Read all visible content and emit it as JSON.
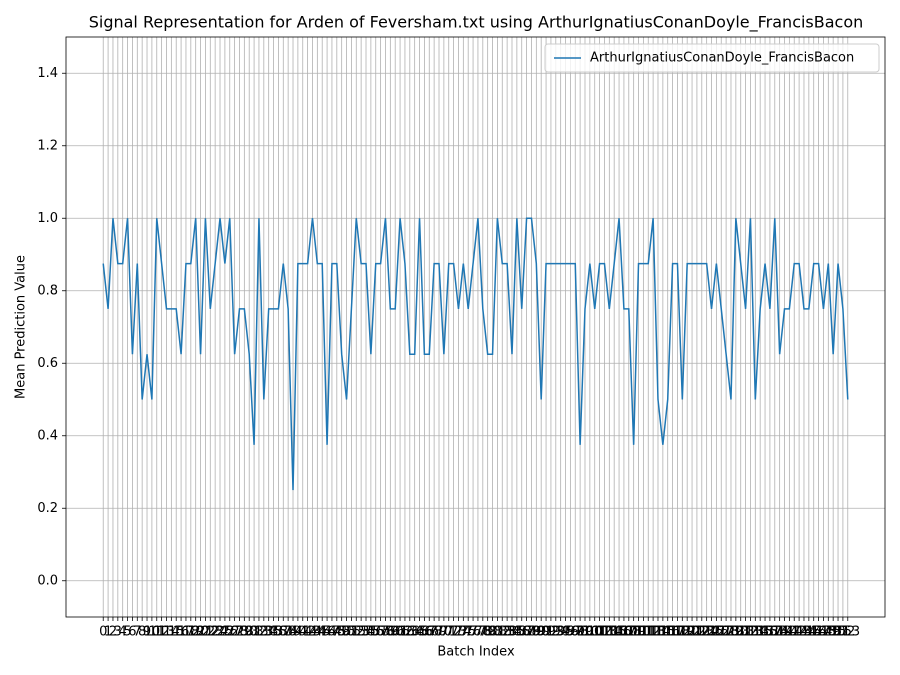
{
  "chart_data": {
    "type": "line",
    "title": "Signal Representation for Arden of Feversham.txt using ArthurIgnatiusConanDoyle_FrancisBacon",
    "x_label": "Batch Index",
    "y_label": "Mean Prediction Value",
    "x": [
      0,
      1,
      2,
      3,
      4,
      5,
      6,
      7,
      8,
      9,
      10,
      11,
      12,
      13,
      14,
      15,
      16,
      17,
      18,
      19,
      20,
      21,
      22,
      23,
      24,
      25,
      26,
      27,
      28,
      29,
      30,
      31,
      32,
      33,
      34,
      35,
      36,
      37,
      38,
      39,
      40,
      41,
      42,
      43,
      44,
      45,
      46,
      47,
      48,
      49,
      50,
      51,
      52,
      53,
      54,
      55,
      56,
      57,
      58,
      59,
      60,
      61,
      62,
      63,
      64,
      65,
      66,
      67,
      68,
      69,
      70,
      71,
      72,
      73,
      74,
      75,
      76,
      77,
      78,
      79,
      80,
      81,
      82,
      83,
      84,
      85,
      86,
      87,
      88,
      89,
      90,
      91,
      92,
      93,
      94,
      95,
      96,
      97,
      98,
      99,
      100,
      101,
      102,
      103,
      104,
      105,
      106,
      107,
      108,
      109,
      110,
      111,
      112,
      113,
      114,
      115,
      116,
      117,
      118,
      119,
      120,
      121,
      122,
      123,
      124,
      125,
      126,
      127,
      128,
      129,
      130,
      131,
      132,
      133,
      134,
      135,
      136,
      137,
      138,
      139,
      140,
      141,
      142,
      143,
      144,
      145,
      146,
      147,
      148,
      149,
      150,
      151,
      152,
      153
    ],
    "series": [
      {
        "name": "ArthurIgnatiusConanDoyle_FrancisBacon",
        "color": "#1f77b4",
        "values": [
          0.875,
          0.75,
          1,
          0.875,
          0.875,
          1,
          0.625,
          0.875,
          0.5,
          0.625,
          0.5,
          1,
          0.875,
          0.75,
          0.75,
          0.75,
          0.625,
          0.875,
          0.875,
          1,
          0.625,
          1,
          0.75,
          0.875,
          1,
          0.875,
          1,
          0.625,
          0.75,
          0.75,
          0.625,
          0.375,
          1,
          0.5,
          0.75,
          0.75,
          0.75,
          0.875,
          0.75,
          0.25,
          0.875,
          0.875,
          0.875,
          1,
          0.875,
          0.875,
          0.375,
          0.875,
          0.875,
          0.625,
          0.5,
          0.75,
          1,
          0.875,
          0.875,
          0.625,
          0.875,
          0.875,
          1,
          0.75,
          0.75,
          1,
          0.875,
          0.625,
          0.625,
          1,
          0.625,
          0.625,
          0.875,
          0.875,
          0.625,
          0.875,
          0.875,
          0.75,
          0.875,
          0.75,
          0.875,
          1,
          0.75,
          0.625,
          0.625,
          1,
          0.875,
          0.875,
          0.625,
          1,
          0.75,
          1,
          1,
          0.875,
          0.5,
          0.875,
          0.875,
          0.875,
          0.875,
          0.875,
          0.875,
          0.875,
          0.375,
          0.75,
          0.875,
          0.75,
          0.875,
          0.875,
          0.75,
          0.875,
          1,
          0.75,
          0.75,
          0.375,
          0.875,
          0.875,
          0.875,
          1,
          0.5,
          0.375,
          0.5,
          0.875,
          0.875,
          0.5,
          0.875,
          0.875,
          0.875,
          0.875,
          0.875,
          0.75,
          0.875,
          0.75,
          0.625,
          0.5,
          1,
          0.875,
          0.75,
          1,
          0.5,
          0.75,
          0.875,
          0.75,
          1,
          0.625,
          0.75,
          0.75,
          0.875,
          0.875,
          0.75,
          0.75,
          0.875,
          0.875,
          0.75,
          0.875,
          0.625,
          0.875,
          0.75,
          0.5
        ]
      }
    ],
    "xlim": [
      -7.65,
      160.65
    ],
    "xticks": [
      0,
      1,
      2,
      3,
      4,
      5,
      6,
      7,
      8,
      9,
      10,
      11,
      12,
      13,
      14,
      15,
      16,
      17,
      18,
      19,
      20,
      21,
      22,
      23,
      24,
      25,
      26,
      27,
      28,
      29,
      30,
      31,
      32,
      33,
      34,
      35,
      36,
      37,
      38,
      39,
      40,
      41,
      42,
      43,
      44,
      45,
      46,
      47,
      48,
      49,
      50,
      51,
      52,
      53,
      54,
      55,
      56,
      57,
      58,
      59,
      60,
      61,
      62,
      63,
      64,
      65,
      66,
      67,
      68,
      69,
      70,
      71,
      72,
      73,
      74,
      75,
      76,
      77,
      78,
      79,
      80,
      81,
      82,
      83,
      84,
      85,
      86,
      87,
      88,
      89,
      90,
      91,
      92,
      93,
      94,
      95,
      96,
      97,
      98,
      99,
      100,
      101,
      102,
      103,
      104,
      105,
      106,
      107,
      108,
      109,
      110,
      111,
      112,
      113,
      114,
      115,
      116,
      117,
      118,
      119,
      120,
      121,
      122,
      123,
      124,
      125,
      126,
      127,
      128,
      129,
      130,
      131,
      132,
      133,
      134,
      135,
      136,
      137,
      138,
      139,
      140,
      141,
      142,
      143,
      144,
      145,
      146,
      147,
      148,
      149,
      150,
      151,
      152,
      153
    ],
    "ylim": [
      -0.1,
      1.5
    ],
    "yticks": [
      {
        "value": 0,
        "label": "0.0"
      },
      0.2,
      0.4,
      0.6,
      0.8,
      {
        "value": 1,
        "label": "1.0"
      },
      1.2,
      1.4
    ],
    "grid": true,
    "legend": "upper right"
  }
}
